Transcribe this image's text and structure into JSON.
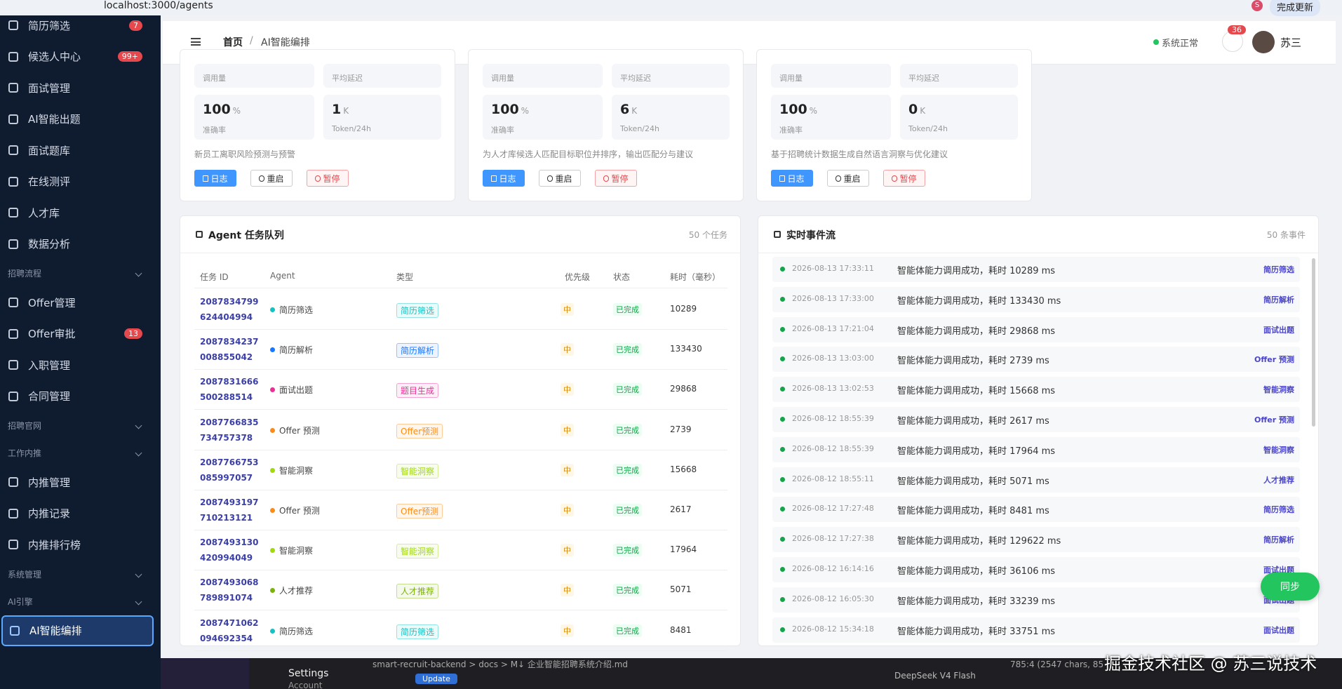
{
  "browser": {
    "url": "localhost:3000/agents",
    "update_button": "完成更新",
    "profile": "S"
  },
  "sidebar": {
    "items": [
      {
        "label": "简历筛选",
        "badge": "7"
      },
      {
        "label": "候选人中心",
        "badge": "99+"
      },
      {
        "label": "面试管理"
      },
      {
        "label": "AI智能出题"
      },
      {
        "label": "面试题库"
      },
      {
        "label": "在线测评"
      },
      {
        "label": "人才库"
      },
      {
        "label": "数据分析"
      },
      {
        "group": "招聘流程"
      },
      {
        "label": "Offer管理"
      },
      {
        "label": "Offer审批",
        "badge": "13"
      },
      {
        "label": "入职管理"
      },
      {
        "label": "合同管理"
      },
      {
        "group": "招聘官网"
      },
      {
        "group": "工作内推"
      },
      {
        "label": "内推管理"
      },
      {
        "label": "内推记录"
      },
      {
        "label": "内推排行榜"
      },
      {
        "group": "系统管理"
      },
      {
        "group": "AI引擎"
      },
      {
        "label": "AI智能编排",
        "active": true
      }
    ]
  },
  "header": {
    "breadcrumb": [
      "首页",
      "AI智能编排"
    ],
    "separator": "/",
    "status": "系统正常",
    "notifications": "36",
    "user": "苏三"
  },
  "agent_cards": [
    {
      "stat_labels": [
        "调用量",
        "平均延迟"
      ],
      "accuracy": {
        "value": "100",
        "unit": "%",
        "label": "准确率"
      },
      "tokens": {
        "value": "1",
        "unit": "K",
        "label": "Token/24h"
      },
      "description": "新员工离职风险预测与预警",
      "buttons": [
        "日志",
        "重启",
        "暂停"
      ]
    },
    {
      "stat_labels": [
        "调用量",
        "平均延迟"
      ],
      "accuracy": {
        "value": "100",
        "unit": "%",
        "label": "准确率"
      },
      "tokens": {
        "value": "6",
        "unit": "K",
        "label": "Token/24h"
      },
      "description": "为人才库候选人匹配目标职位并排序，输出匹配分与建议",
      "buttons": [
        "日志",
        "重启",
        "暂停"
      ]
    },
    {
      "stat_labels": [
        "调用量",
        "平均延迟"
      ],
      "accuracy": {
        "value": "100",
        "unit": "%",
        "label": "准确率"
      },
      "tokens": {
        "value": "0",
        "unit": "K",
        "label": "Token/24h"
      },
      "description": "基于招聘统计数据生成自然语言洞察与优化建议",
      "buttons": [
        "日志",
        "重启",
        "暂停"
      ]
    }
  ],
  "task_queue": {
    "title": "Agent 任务队列",
    "count": "50 个任务",
    "columns": [
      "任务 ID",
      "Agent",
      "类型",
      "优先级",
      "状态",
      "耗时（毫秒）"
    ],
    "rows": [
      {
        "id": "2087834799624404994",
        "agent": "简历筛选",
        "color": "#13c2c2",
        "type": "简历筛选",
        "priority": "中",
        "status": "已完成",
        "duration": 10289
      },
      {
        "id": "2087834237008855042",
        "agent": "简历解析",
        "color": "#1677ff",
        "type": "简历解析",
        "priority": "中",
        "status": "已完成",
        "duration": 133430
      },
      {
        "id": "2087831666500288514",
        "agent": "面试出题",
        "color": "#eb2f96",
        "type": "题目生成",
        "priority": "中",
        "status": "已完成",
        "duration": 29868
      },
      {
        "id": "2087766835734757378",
        "agent": "Offer 预测",
        "color": "#fa8c16",
        "type": "Offer预测",
        "priority": "中",
        "status": "已完成",
        "duration": 2739
      },
      {
        "id": "2087766753085997057",
        "agent": "智能洞察",
        "color": "#a0d911",
        "type": "智能洞察",
        "priority": "中",
        "status": "已完成",
        "duration": 15668
      },
      {
        "id": "2087493197710213121",
        "agent": "Offer 预测",
        "color": "#fa8c16",
        "type": "Offer预测",
        "priority": "中",
        "status": "已完成",
        "duration": 2617
      },
      {
        "id": "2087493130420994049",
        "agent": "智能洞察",
        "color": "#a0d911",
        "type": "智能洞察",
        "priority": "中",
        "status": "已完成",
        "duration": 17964
      },
      {
        "id": "2087493068789891074",
        "agent": "人才推荐",
        "color": "#7cb305",
        "type": "人才推荐",
        "priority": "中",
        "status": "已完成",
        "duration": 5071
      },
      {
        "id": "2087471062094692354",
        "agent": "简历筛选",
        "color": "#13c2c2",
        "type": "简历筛选",
        "priority": "中",
        "status": "已完成",
        "duration": 8481
      }
    ]
  },
  "event_stream": {
    "title": "实时事件流",
    "count": "50 条事件",
    "events": [
      {
        "time": "2026-08-13 17:33:11",
        "message": "智能体能力调用成功，耗时 10289 ms",
        "tag": "简历筛选"
      },
      {
        "time": "2026-08-13 17:33:00",
        "message": "智能体能力调用成功，耗时 133430 ms",
        "tag": "简历解析"
      },
      {
        "time": "2026-08-13 17:21:04",
        "message": "智能体能力调用成功，耗时 29868 ms",
        "tag": "面试出题"
      },
      {
        "time": "2026-08-13 13:03:00",
        "message": "智能体能力调用成功，耗时 2739 ms",
        "tag": "Offer 预测"
      },
      {
        "time": "2026-08-13 13:02:53",
        "message": "智能体能力调用成功，耗时 15668 ms",
        "tag": "智能洞察"
      },
      {
        "time": "2026-08-12 18:55:39",
        "message": "智能体能力调用成功，耗时 2617 ms",
        "tag": "Offer 预测"
      },
      {
        "time": "2026-08-12 18:55:39",
        "message": "智能体能力调用成功，耗时 17964 ms",
        "tag": "智能洞察"
      },
      {
        "time": "2026-08-12 18:55:11",
        "message": "智能体能力调用成功，耗时 5071 ms",
        "tag": "人才推荐"
      },
      {
        "time": "2026-08-12 17:27:48",
        "message": "智能体能力调用成功，耗时 8481 ms",
        "tag": "简历筛选"
      },
      {
        "time": "2026-08-12 17:27:38",
        "message": "智能体能力调用成功，耗时 129622 ms",
        "tag": "简历解析"
      },
      {
        "time": "2026-08-12 16:14:16",
        "message": "智能体能力调用成功，耗时 36106 ms",
        "tag": "面试出题"
      },
      {
        "time": "2026-08-12 16:05:30",
        "message": "智能体能力调用成功，耗时 33239 ms",
        "tag": "面试出题"
      },
      {
        "time": "2026-08-12 15:34:18",
        "message": "智能体能力调用成功，耗时 33751 ms",
        "tag": "面试出题"
      }
    ]
  },
  "sync_button": "同步",
  "taskbar": {
    "path": "smart-recruit-backend > docs > M↓ 企业智能招聘系统介绍.md",
    "settings": "Settings",
    "account": "Account",
    "update": "Update",
    "model": "DeepSeek V4 Flash",
    "cursor": "785:4 (2547 chars, 85"
  },
  "watermark": "掘金技术社区 @ 苏三说技术"
}
